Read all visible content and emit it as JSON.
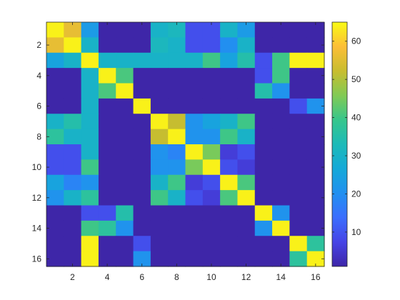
{
  "chart_data": {
    "type": "heatmap",
    "x": [
      1,
      2,
      3,
      4,
      5,
      6,
      7,
      8,
      9,
      10,
      11,
      12,
      13,
      14,
      15,
      16
    ],
    "y": [
      1,
      2,
      3,
      4,
      5,
      6,
      7,
      8,
      9,
      10,
      11,
      12,
      13,
      14,
      15,
      16
    ],
    "x_tick_labels": [
      "2",
      "4",
      "6",
      "8",
      "10",
      "12",
      "14",
      "16"
    ],
    "y_tick_labels": [
      "2",
      "4",
      "6",
      "8",
      "10",
      "12",
      "14",
      "16"
    ],
    "colorbar_tick_labels": [
      "10",
      "20",
      "30",
      "40",
      "50",
      "60"
    ],
    "colorbar_range": [
      1,
      65
    ],
    "colormap": "parula",
    "grid": false,
    "values": [
      [
        64,
        56,
        23,
        1,
        1,
        1,
        30,
        32,
        9,
        9,
        30,
        23,
        1,
        1,
        1,
        1
      ],
      [
        56,
        64,
        30,
        1,
        1,
        1,
        32,
        30,
        9,
        9,
        20,
        30,
        1,
        1,
        1,
        1
      ],
      [
        25,
        30,
        64,
        30,
        30,
        30,
        30,
        30,
        30,
        40,
        25,
        35,
        9,
        40,
        64,
        64
      ],
      [
        1,
        1,
        30,
        64,
        41,
        1,
        1,
        1,
        1,
        1,
        1,
        1,
        9,
        40,
        1,
        1
      ],
      [
        1,
        1,
        30,
        41,
        64,
        1,
        1,
        1,
        1,
        1,
        1,
        1,
        35,
        21,
        1,
        1
      ],
      [
        1,
        1,
        30,
        1,
        1,
        64,
        1,
        1,
        1,
        1,
        1,
        1,
        1,
        1,
        9,
        21
      ],
      [
        30,
        35,
        30,
        1,
        1,
        1,
        64,
        52,
        21,
        25,
        30,
        40,
        1,
        1,
        1,
        1
      ],
      [
        37,
        30,
        30,
        1,
        1,
        1,
        52,
        64,
        21,
        21,
        40,
        30,
        1,
        1,
        1,
        1
      ],
      [
        9,
        9,
        30,
        1,
        1,
        1,
        21,
        18,
        64,
        45,
        6,
        9,
        1,
        1,
        1,
        1
      ],
      [
        9,
        9,
        40,
        1,
        1,
        1,
        21,
        21,
        45,
        64,
        9,
        6,
        1,
        1,
        1,
        1
      ],
      [
        25,
        18,
        21,
        1,
        1,
        1,
        30,
        40,
        6,
        9,
        64,
        41,
        1,
        1,
        1,
        1
      ],
      [
        21,
        30,
        37,
        1,
        1,
        1,
        40,
        30,
        9,
        6,
        41,
        64,
        1,
        1,
        1,
        1
      ],
      [
        1,
        1,
        9,
        9,
        35,
        1,
        1,
        1,
        1,
        1,
        1,
        1,
        64,
        21,
        1,
        1
      ],
      [
        1,
        1,
        40,
        37,
        21,
        1,
        1,
        1,
        1,
        1,
        1,
        1,
        21,
        64,
        1,
        1
      ],
      [
        1,
        1,
        64,
        1,
        1,
        9,
        1,
        1,
        1,
        1,
        1,
        1,
        1,
        1,
        64,
        37
      ],
      [
        1,
        1,
        64,
        1,
        1,
        21,
        1,
        1,
        1,
        1,
        1,
        1,
        1,
        1,
        37,
        64
      ]
    ]
  }
}
